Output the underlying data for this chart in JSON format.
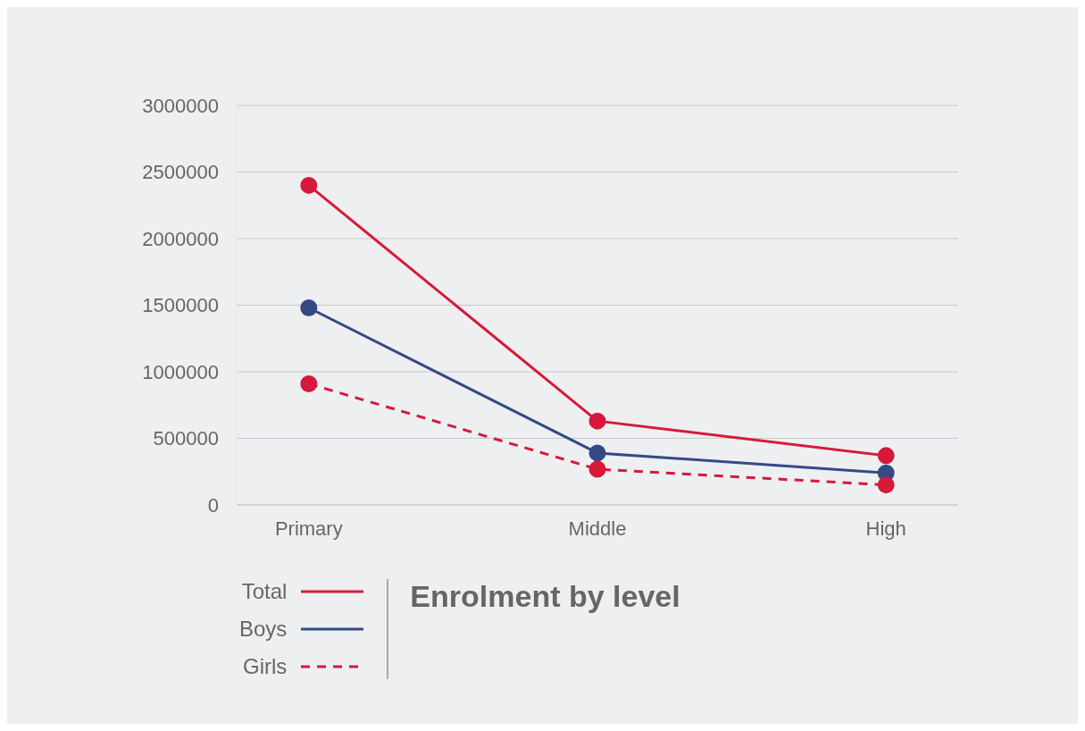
{
  "chart_data": {
    "type": "line",
    "title": "Enrolment by level",
    "categories": [
      "Primary",
      "Middle",
      "High"
    ],
    "series": [
      {
        "name": "Total",
        "color": "#d7193a",
        "values": [
          2400000,
          630000,
          370000
        ]
      },
      {
        "name": "Boys",
        "color": "#344a85",
        "values": [
          1480000,
          390000,
          240000
        ]
      },
      {
        "name": "Girls",
        "color": "#d7193a",
        "values": [
          910000,
          268000,
          150000
        ],
        "line_style": "dashed"
      }
    ],
    "ylim": [
      0,
      3000000
    ],
    "yticks": [
      0,
      500000,
      1000000,
      1500000,
      2000000,
      2500000,
      3000000
    ],
    "grid": "y",
    "legend": "bottom left",
    "marker": "circle"
  }
}
